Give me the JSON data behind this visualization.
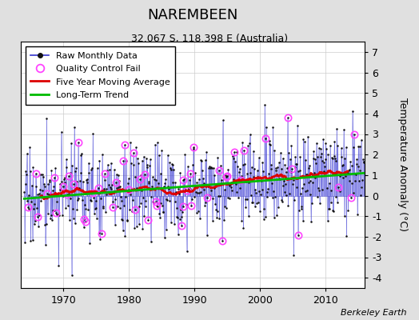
{
  "title": "NAREMBEEN",
  "subtitle": "32.067 S, 118.398 E (Australia)",
  "ylabel": "Temperature Anomaly (°C)",
  "credit": "Berkeley Earth",
  "ylim": [
    -4.5,
    7.5
  ],
  "xlim": [
    1963.5,
    2016
  ],
  "yticks": [
    -4,
    -3,
    -2,
    -1,
    0,
    1,
    2,
    3,
    4,
    5,
    6,
    7
  ],
  "xticks": [
    1970,
    1980,
    1990,
    2000,
    2010
  ],
  "bg_color": "#e0e0e0",
  "plot_bg_color": "#ffffff",
  "line_color": "#3333cc",
  "spike_color": "#5555dd",
  "marker_color": "#111111",
  "qc_color": "#ff44ff",
  "moving_avg_color": "#dd0000",
  "trend_color": "#00bb00",
  "seed": 17
}
